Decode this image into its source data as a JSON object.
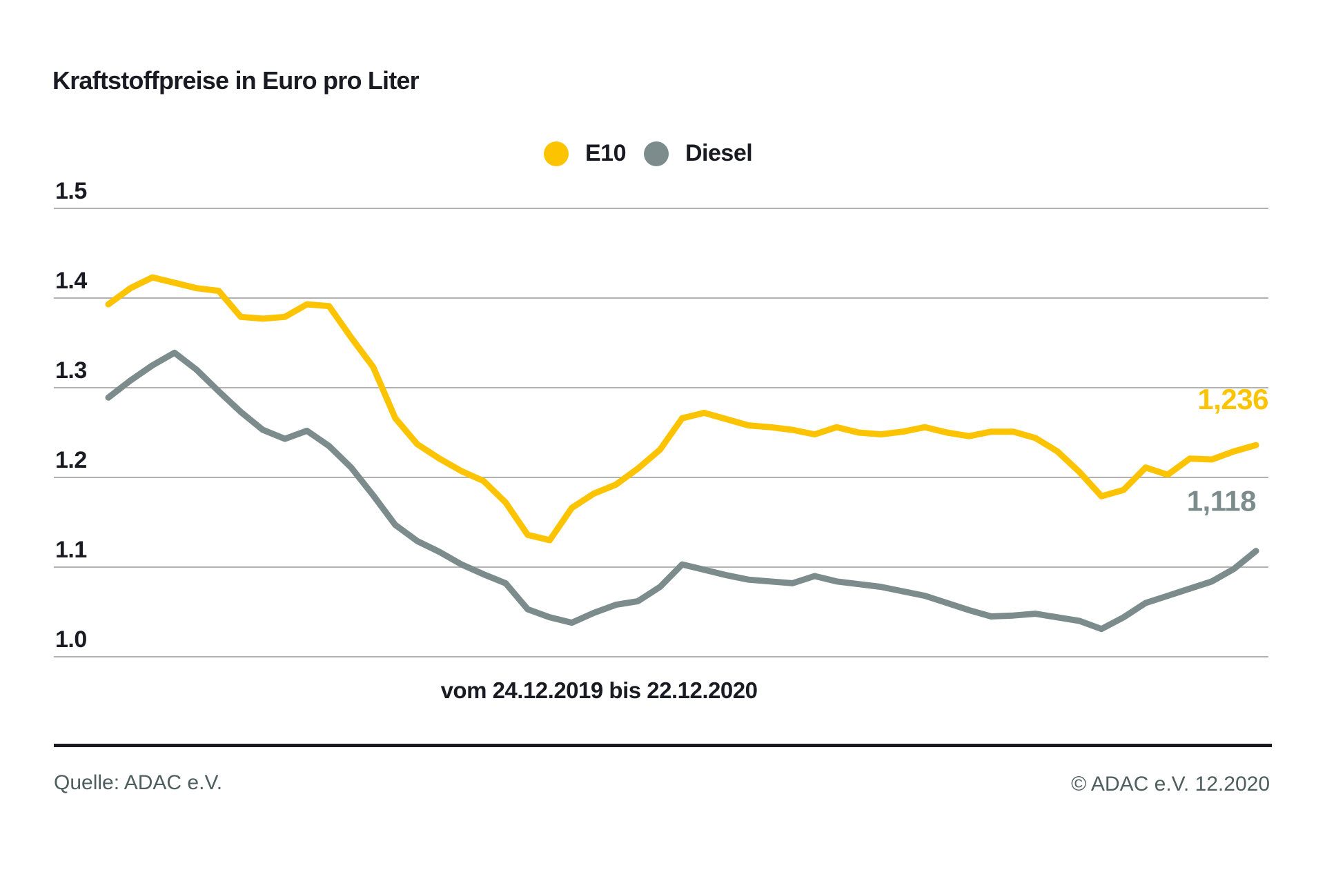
{
  "chart_data": {
    "type": "line",
    "title": "Kraftstoffpreise in Euro pro Liter",
    "xlabel": "vom 24.12.2019 bis 22.12.2020",
    "ylabel": "Euro pro Liter",
    "ylim": [
      1.0,
      1.5
    ],
    "grid": true,
    "legend_position": "top-center",
    "x_range": {
      "from": "24.12.2019",
      "to": "22.12.2020",
      "interval": "weekly",
      "points": 53
    },
    "y_ticks": [
      {
        "label": "1.5",
        "value": 1.5
      },
      {
        "label": "1.4",
        "value": 1.4
      },
      {
        "label": "1.3",
        "value": 1.3
      },
      {
        "label": "1.2",
        "value": 1.2
      },
      {
        "label": "1.1",
        "value": 1.1
      },
      {
        "label": "1.0",
        "value": 1.0
      }
    ],
    "series": [
      {
        "name": "E10",
        "color": "#FCC400",
        "end_label": "1,236",
        "values": [
          1.393,
          1.411,
          1.423,
          1.417,
          1.411,
          1.408,
          1.379,
          1.377,
          1.379,
          1.393,
          1.391,
          1.356,
          1.323,
          1.266,
          1.237,
          1.221,
          1.207,
          1.196,
          1.172,
          1.136,
          1.13,
          1.166,
          1.182,
          1.192,
          1.21,
          1.231,
          1.266,
          1.272,
          1.265,
          1.258,
          1.256,
          1.253,
          1.248,
          1.256,
          1.25,
          1.248,
          1.251,
          1.256,
          1.25,
          1.246,
          1.251,
          1.251,
          1.244,
          1.229,
          1.206,
          1.179,
          1.186,
          1.211,
          1.203,
          1.221,
          1.22,
          1.229,
          1.236
        ]
      },
      {
        "name": "Diesel",
        "color": "#7C8C8C",
        "end_label": "1,118",
        "values": [
          1.289,
          1.308,
          1.325,
          1.339,
          1.32,
          1.296,
          1.273,
          1.253,
          1.243,
          1.252,
          1.235,
          1.211,
          1.18,
          1.147,
          1.129,
          1.117,
          1.103,
          1.092,
          1.082,
          1.053,
          1.044,
          1.038,
          1.049,
          1.058,
          1.062,
          1.078,
          1.103,
          1.097,
          1.091,
          1.086,
          1.084,
          1.082,
          1.09,
          1.084,
          1.081,
          1.078,
          1.073,
          1.068,
          1.06,
          1.052,
          1.045,
          1.046,
          1.048,
          1.044,
          1.04,
          1.031,
          1.044,
          1.06,
          1.068,
          1.076,
          1.084,
          1.098,
          1.118
        ]
      }
    ]
  },
  "footer": {
    "source": "Quelle: ADAC e.V.",
    "copyright": "© ADAC e.V. 12.2020"
  }
}
